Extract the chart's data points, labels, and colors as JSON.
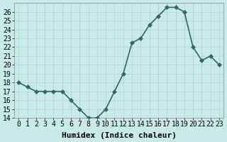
{
  "x": [
    0,
    1,
    2,
    3,
    4,
    5,
    6,
    7,
    8,
    9,
    10,
    11,
    12,
    13,
    14,
    15,
    16,
    17,
    18,
    19,
    20,
    21,
    22,
    23
  ],
  "y": [
    18,
    17.5,
    17,
    17,
    17,
    17,
    16,
    15,
    14,
    14,
    15,
    17,
    19,
    22.5,
    23,
    24.5,
    25.5,
    26.5,
    26.5,
    26,
    22,
    20.5,
    21,
    20
  ],
  "line_color": "#2d6b5e",
  "marker_color": "#2d6b5e",
  "bg_color": "#c8eae8",
  "grid_color": "#b0d4d0",
  "xlabel": "Humidex (Indice chaleur)",
  "xlim": [
    -0.5,
    23.5
  ],
  "ylim": [
    14,
    27
  ],
  "yticks": [
    14,
    15,
    16,
    17,
    18,
    19,
    20,
    21,
    22,
    23,
    24,
    25,
    26
  ],
  "xticks": [
    0,
    1,
    2,
    3,
    4,
    5,
    6,
    7,
    8,
    9,
    10,
    11,
    12,
    13,
    14,
    15,
    16,
    17,
    18,
    19,
    20,
    21,
    22,
    23
  ],
  "tick_label_fontsize": 7,
  "xlabel_fontsize": 8,
  "marker_size": 3,
  "line_width": 1.2
}
